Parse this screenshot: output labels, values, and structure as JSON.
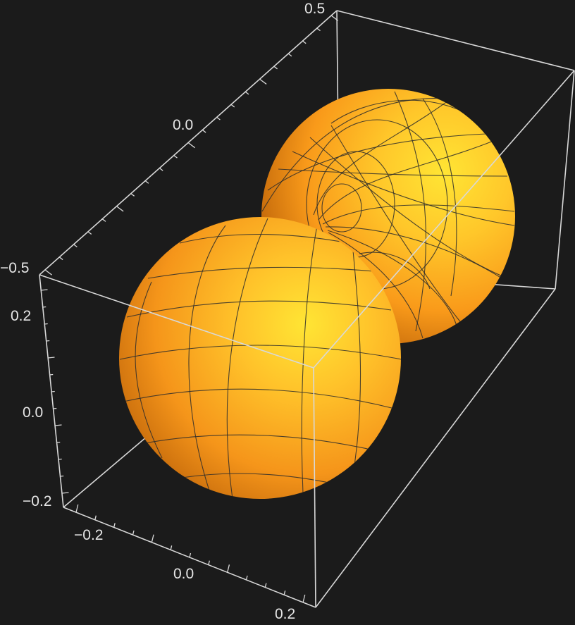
{
  "chart_data": {
    "type": "3d-surface",
    "surface": "two-lobed spherical surface (dumbbell shape) with mesh lines",
    "colors": {
      "background": "#1b1b1b",
      "surface_highlight": "#ffe534",
      "surface_mid": "#ffa31f",
      "surface_shadow": "#b35a06",
      "box": "#d8d8d8",
      "mesh": "#2c2c2c"
    },
    "axes": {
      "depth_axis": {
        "range": [
          -0.5,
          0.5
        ],
        "tick_labels": [
          "0.5",
          "0.0",
          "−0.5"
        ]
      },
      "vertical_axis": {
        "range": [
          -0.25,
          0.25
        ],
        "tick_labels": [
          "0.2",
          "0.0",
          "−0.2"
        ]
      },
      "front_axis": {
        "range": [
          -0.25,
          0.25
        ],
        "tick_labels": [
          "−0.2",
          "0.0",
          "0.2"
        ]
      }
    }
  }
}
